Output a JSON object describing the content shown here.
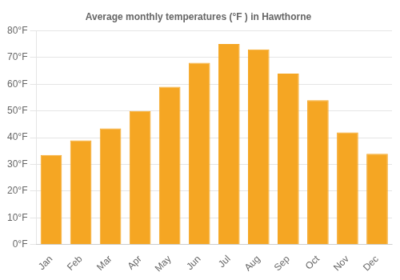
{
  "chart_data": {
    "type": "bar",
    "title": "Average monthly temperatures (°F ) in Hawthorne",
    "categories": [
      "Jan",
      "Feb",
      "Mar",
      "Apr",
      "May",
      "Jun",
      "Jul",
      "Aug",
      "Sep",
      "Oct",
      "Nov",
      "Dec"
    ],
    "values": [
      33.5,
      39,
      43.5,
      50,
      59,
      68,
      75,
      73,
      64,
      54,
      42,
      34
    ],
    "color": "#F5A623",
    "ylim": [
      0,
      80
    ],
    "yticks": [
      {
        "value": 0,
        "label": "0°F"
      },
      {
        "value": 10,
        "label": "10°F"
      },
      {
        "value": 20,
        "label": "20°F"
      },
      {
        "value": 30,
        "label": "30°F"
      },
      {
        "value": 40,
        "label": "40°F"
      },
      {
        "value": 50,
        "label": "50°F"
      },
      {
        "value": 60,
        "label": "60°F"
      },
      {
        "value": 70,
        "label": "70°F"
      },
      {
        "value": 80,
        "label": "80°F"
      }
    ],
    "grid": true
  }
}
